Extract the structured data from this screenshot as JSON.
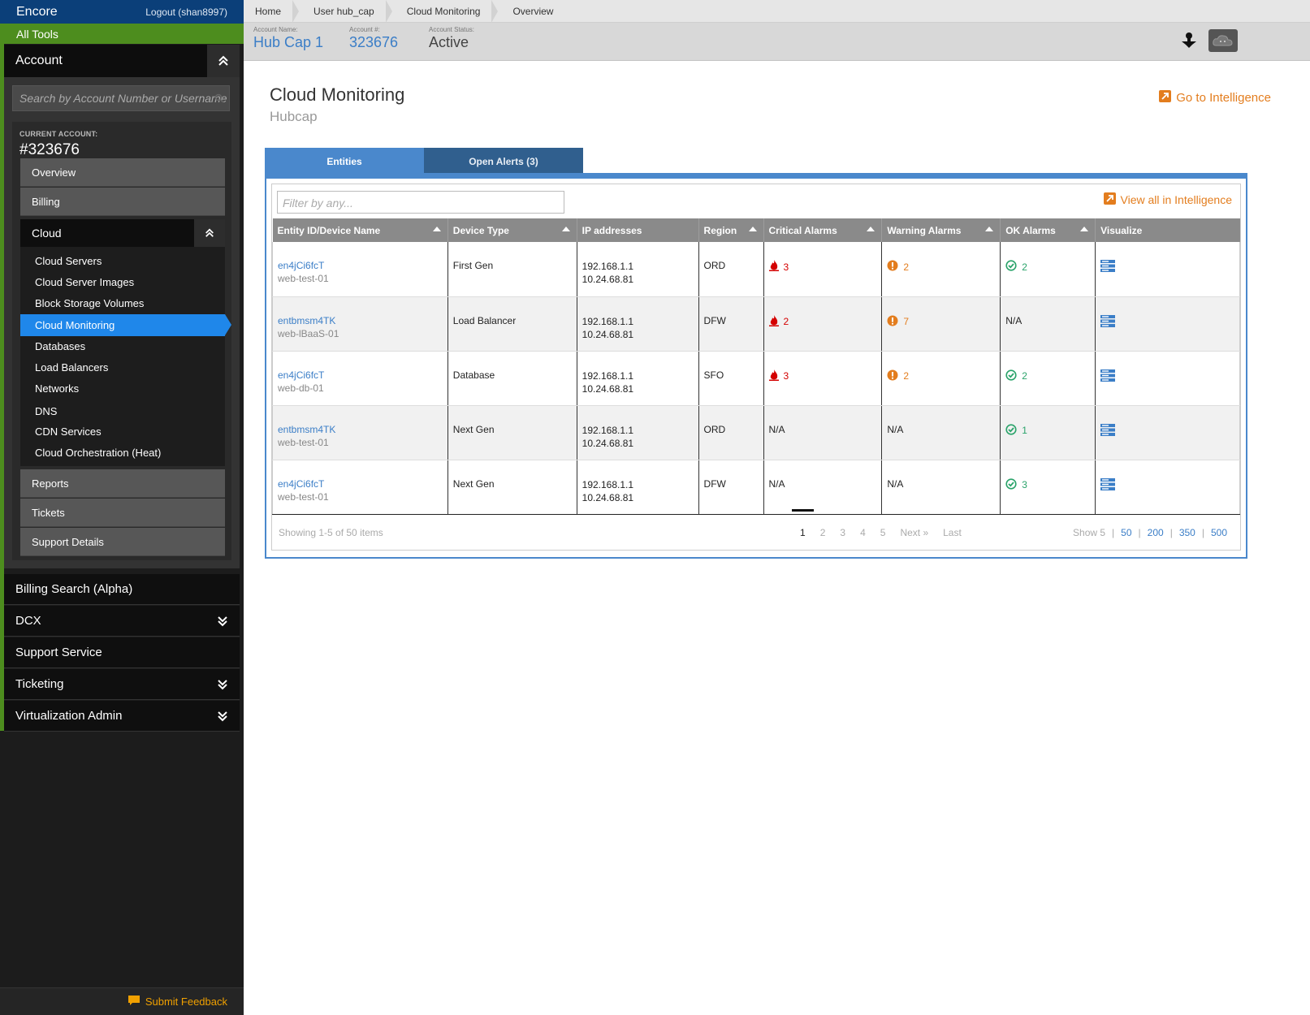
{
  "sidebar": {
    "brand": "Encore",
    "logout": "Logout (shan8997)",
    "all_tools": "All Tools",
    "account_title": "Account",
    "search_placeholder": "Search by Account Number or Username",
    "current_account_label": "CURRENT ACCOUNT:",
    "current_account_number": "#323676",
    "nav": {
      "overview": "Overview",
      "billing": "Billing",
      "cloud": "Cloud",
      "reports": "Reports",
      "tickets": "Tickets",
      "support_details": "Support Details"
    },
    "cloud_items": [
      "Cloud Servers",
      "Cloud Server Images",
      "Block Storage Volumes",
      "Cloud Monitoring",
      "Databases",
      "Load Balancers",
      "Networks",
      "DNS",
      "CDN Services",
      "Cloud Orchestration (Heat)"
    ],
    "active_cloud_item": "Cloud Monitoring",
    "sections": [
      "Billing Search (Alpha)",
      "DCX",
      "Support Service",
      "Ticketing",
      "Virtualization Admin"
    ],
    "feedback": "Submit Feedback"
  },
  "breadcrumbs": [
    "Home",
    "User hub_cap",
    "Cloud Monitoring",
    "Overview"
  ],
  "account_bar": {
    "name_label": "Account Name:",
    "name": "Hub Cap 1",
    "number_label": "Account #:",
    "number": "323676",
    "status_label": "Account Status:",
    "status": "Active"
  },
  "main": {
    "title": "Cloud Monitoring",
    "subtitle": "Hubcap",
    "go_to_intelligence": "Go to Intelligence",
    "tabs": [
      {
        "label": "Entities",
        "active": true
      },
      {
        "label": "Open Alerts (3)",
        "active": false
      }
    ],
    "filter_placeholder": "Filter by any...",
    "view_all": "View all in Intelligence",
    "columns": [
      "Entity ID/Device Name",
      "Device Type",
      "IP addresses",
      "Region",
      "Critical Alarms",
      "Warning Alarms",
      "OK Alarms",
      "Visualize"
    ],
    "rows": [
      {
        "id": "en4jCi6fcT",
        "name": "web-test-01",
        "type": "First Gen",
        "ip1": "192.168.1.1",
        "ip2": "10.24.68.81",
        "region": "ORD",
        "critical": "3",
        "warning": "2",
        "ok": "2"
      },
      {
        "id": "entbmsm4TK",
        "name": "web-lBaaS-01",
        "type": "Load Balancer",
        "ip1": "192.168.1.1",
        "ip2": "10.24.68.81",
        "region": "DFW",
        "critical": "2",
        "warning": "7",
        "ok": "N/A"
      },
      {
        "id": "en4jCi6fcT",
        "name": "web-db-01",
        "type": "Database",
        "ip1": "192.168.1.1",
        "ip2": "10.24.68.81",
        "region": "SFO",
        "critical": "3",
        "warning": "2",
        "ok": "2"
      },
      {
        "id": "entbmsm4TK",
        "name": "web-test-01",
        "type": "Next Gen",
        "ip1": "192.168.1.1",
        "ip2": "10.24.68.81",
        "region": "ORD",
        "critical": "N/A",
        "warning": "N/A",
        "ok": "1"
      },
      {
        "id": "en4jCi6fcT",
        "name": "web-test-01",
        "type": "Next Gen",
        "ip1": "192.168.1.1",
        "ip2": "10.24.68.81",
        "region": "DFW",
        "critical": "N/A",
        "warning": "N/A",
        "ok": "3"
      }
    ],
    "showing": "Showing 1-5 of 50 items",
    "pages": [
      "1",
      "2",
      "3",
      "4",
      "5",
      "Next »",
      "Last"
    ],
    "current_page": "1",
    "show_label": "Show 5",
    "show_options": [
      "50",
      "200",
      "350",
      "500"
    ]
  },
  "colors": {
    "brand_blue": "#0b3f79",
    "tools_green": "#4d8d1e",
    "active_nav": "#1f87ea",
    "link_blue": "#3b7ec7",
    "intel_orange": "#e37d1e",
    "critical_red": "#d40000",
    "ok_green": "#2aa36a"
  }
}
